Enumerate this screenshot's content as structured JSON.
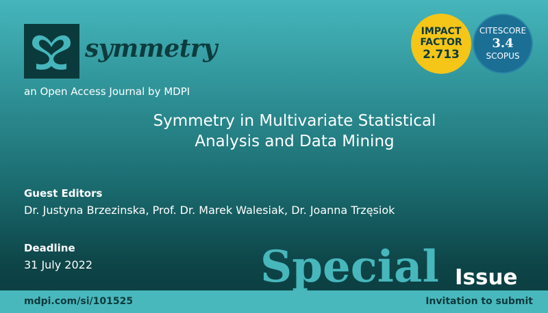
{
  "journal": {
    "name": "symmetry",
    "tagline": "an Open Access Journal by MDPI"
  },
  "badges": {
    "impact": {
      "line1": "IMPACT",
      "line2": "FACTOR",
      "value": "2.713",
      "color": "#f5c518"
    },
    "citescore": {
      "line1": "CITESCORE",
      "value": "3.4",
      "line3": "SCOPUS",
      "color": "#1b6f95"
    }
  },
  "special_issue_title": {
    "line1": "Symmetry in Multivariate Statistical",
    "line2": "Analysis and Data Mining"
  },
  "guest_editors": {
    "label": "Guest Editors",
    "value": "Dr. Justyna Brzezinska, Prof. Dr. Marek Walesiak, Dr. Joanna Trzęsiok"
  },
  "deadline": {
    "label": "Deadline",
    "value": "31 July 2022"
  },
  "special": "Special",
  "issue": "Issue",
  "footer": {
    "url": "mdpi.com/si/101525",
    "cta": "Invitation to submit"
  }
}
